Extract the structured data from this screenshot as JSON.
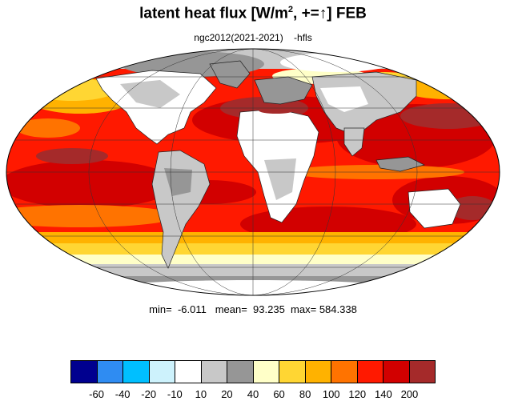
{
  "title": {
    "main": "latent heat flux [W/m",
    "sup": "2",
    "tail": ", +=↑]  FEB"
  },
  "subtitle": "ngc2012(2021-2021)    -hfls",
  "stats": {
    "min_label": "min=",
    "min": "-6.011",
    "mean_label": "mean=",
    "mean": "93.235",
    "max_label": "max=",
    "max": "584.338"
  },
  "colorbar": {
    "colors": [
      "#00008f",
      "#2f8cf2",
      "#00bfff",
      "#cdf2fc",
      "#ffffff",
      "#c8c8c8",
      "#969696",
      "#ffffc8",
      "#ffd633",
      "#ffb200",
      "#ff7300",
      "#ff1900",
      "#d20000",
      "#a52a2a"
    ],
    "labels": [
      "-60",
      "-40",
      "-20",
      "-10",
      "10",
      "20",
      "40",
      "60",
      "80",
      "100",
      "120",
      "140",
      "200"
    ]
  },
  "map": {
    "projection": "mollweide",
    "ocean_base_color": "#ff1900",
    "land_color": "#ffffff"
  }
}
